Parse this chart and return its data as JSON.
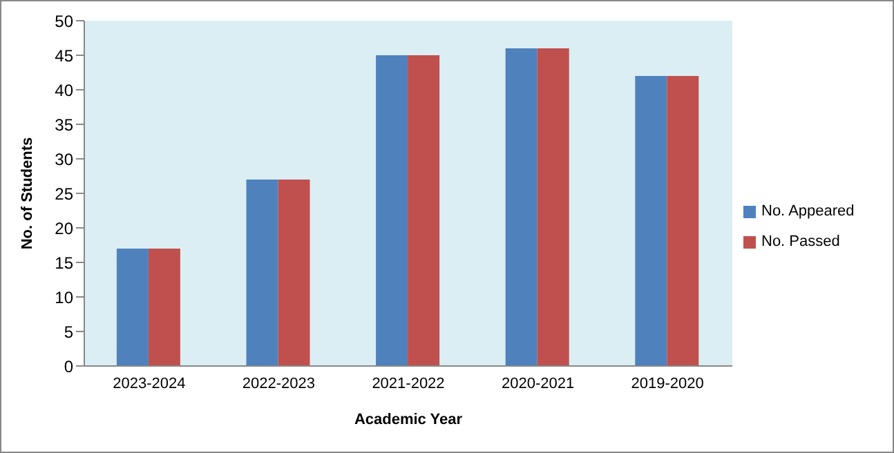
{
  "chart_data": {
    "type": "bar",
    "xlabel": "Academic Year",
    "ylabel": "No. of Students",
    "categories": [
      "2023-2024",
      "2022-2023",
      "2021-2022",
      "2020-2021",
      "2019-2020"
    ],
    "series": [
      {
        "name": "No. Appeared",
        "color": "#4f81bd",
        "values": [
          17,
          27,
          45,
          46,
          42
        ]
      },
      {
        "name": "No. Passed",
        "color": "#c0504d",
        "values": [
          17,
          27,
          45,
          46,
          42
        ]
      }
    ],
    "ylim": [
      0,
      50
    ],
    "yticks": [
      0,
      5,
      10,
      15,
      20,
      25,
      30,
      35,
      40,
      45,
      50
    ],
    "grid": false,
    "legend": "right"
  }
}
